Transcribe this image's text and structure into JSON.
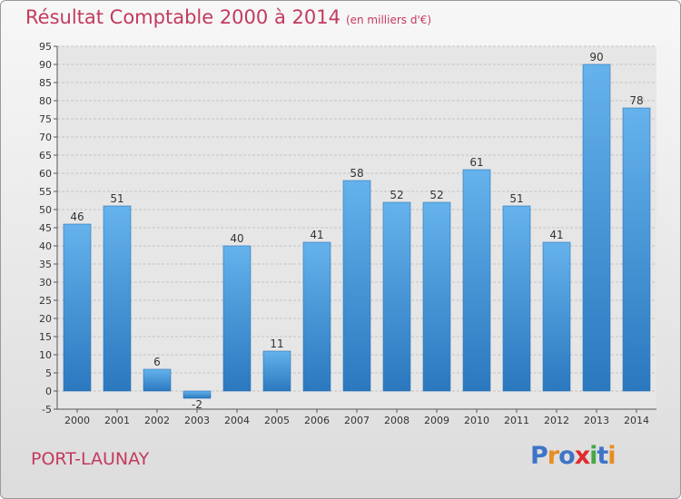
{
  "header": {
    "title": "Résultat Comptable 2000 à 2014",
    "subtitle": "(en milliers d'€)"
  },
  "footer": {
    "city": "PORT-LAUNAY",
    "logo_letters": [
      "P",
      "r",
      "o",
      "x",
      "i",
      "t",
      "i"
    ],
    "logo_colors": [
      "#3e74c8",
      "#e78d22",
      "#3e74c8",
      "#e02b2b",
      "#48a845",
      "#3e74c8",
      "#e78d22"
    ]
  },
  "chart_data": {
    "type": "bar",
    "title": "Résultat Comptable 2000 à 2014",
    "subtitle": "(en milliers d'€)",
    "xlabel": "",
    "ylabel": "",
    "categories": [
      "2000",
      "2001",
      "2002",
      "2003",
      "2004",
      "2005",
      "2006",
      "2007",
      "2008",
      "2009",
      "2010",
      "2011",
      "2012",
      "2013",
      "2014"
    ],
    "values": [
      46,
      51,
      6,
      -2,
      40,
      11,
      41,
      58,
      52,
      52,
      61,
      51,
      41,
      90,
      78
    ],
    "data_labels": [
      "46",
      "51",
      "6",
      "-2",
      "40",
      "11",
      "41",
      "58",
      "52",
      "52",
      "61",
      "51",
      "41",
      "90",
      "78"
    ],
    "ylim": [
      -5,
      95
    ],
    "yticks": [
      -5,
      0,
      5,
      10,
      15,
      20,
      25,
      30,
      35,
      40,
      45,
      50,
      55,
      60,
      65,
      70,
      75,
      80,
      85,
      90,
      95
    ],
    "grid": true,
    "bar_color": "#3d8fd6",
    "bar_color_light": "#65b2ec",
    "bar_color_dark": "#2b78bf"
  }
}
